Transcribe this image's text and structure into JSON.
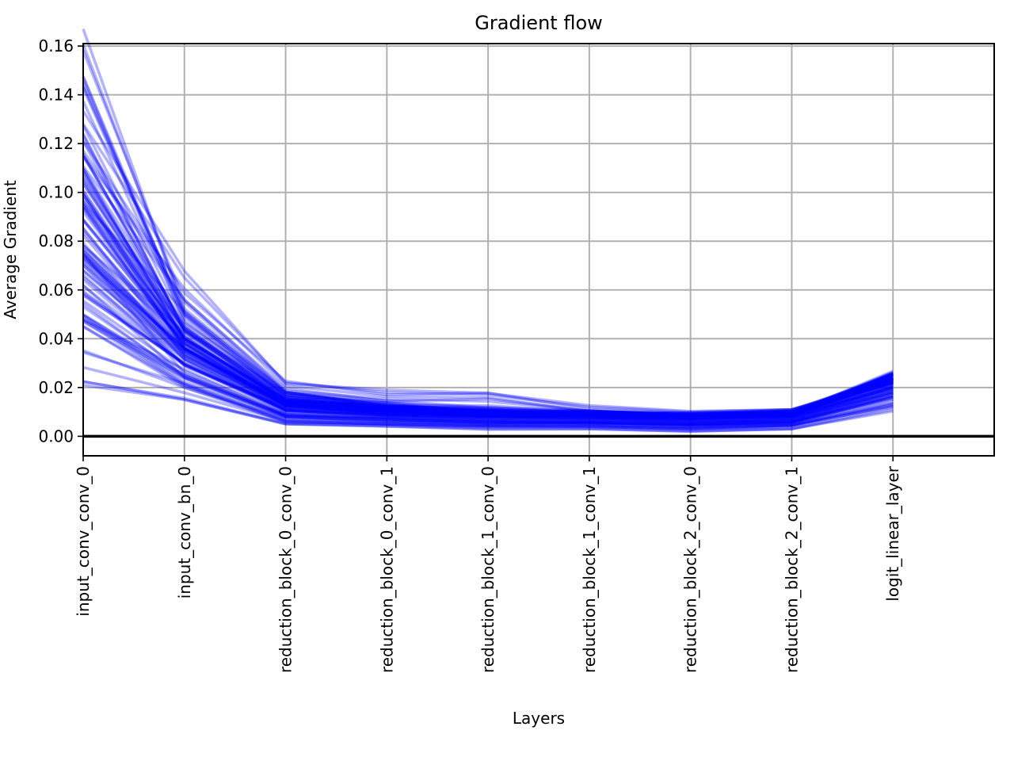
{
  "chart_data": {
    "type": "line",
    "title": "Gradient flow",
    "xlabel": "Layers",
    "ylabel": "Average Gradient",
    "categories": [
      "input_conv_conv_0",
      "input_conv_bn_0",
      "reduction_block_0_conv_0",
      "reduction_block_0_conv_1",
      "reduction_block_1_conv_0",
      "reduction_block_1_conv_1",
      "reduction_block_2_conv_0",
      "reduction_block_2_conv_1",
      "logit_linear_layer"
    ],
    "yticks": [
      "0.00",
      "0.02",
      "0.04",
      "0.06",
      "0.08",
      "0.10",
      "0.12",
      "0.14",
      "0.16"
    ],
    "ylim": [
      -0.008,
      0.161
    ],
    "xlim": [
      0,
      9
    ],
    "grid": true,
    "zero_line": true,
    "series_color": "#0000ff",
    "series_opacity": 0.3,
    "series_count": 100,
    "representative_series": [
      [
        0.158,
        0.055,
        0.018,
        0.012,
        0.01,
        0.009,
        0.008,
        0.009,
        0.025
      ],
      [
        0.145,
        0.05,
        0.017,
        0.013,
        0.01,
        0.009,
        0.009,
        0.01,
        0.024
      ],
      [
        0.128,
        0.065,
        0.022,
        0.018,
        0.017,
        0.012,
        0.01,
        0.011,
        0.022
      ],
      [
        0.115,
        0.045,
        0.015,
        0.012,
        0.01,
        0.01,
        0.009,
        0.009,
        0.026
      ],
      [
        0.105,
        0.04,
        0.015,
        0.011,
        0.01,
        0.009,
        0.009,
        0.01,
        0.024
      ],
      [
        0.095,
        0.038,
        0.014,
        0.012,
        0.011,
        0.01,
        0.009,
        0.01,
        0.025
      ],
      [
        0.085,
        0.036,
        0.013,
        0.011,
        0.01,
        0.009,
        0.008,
        0.009,
        0.023
      ],
      [
        0.075,
        0.035,
        0.013,
        0.01,
        0.009,
        0.009,
        0.008,
        0.009,
        0.024
      ],
      [
        0.068,
        0.032,
        0.012,
        0.01,
        0.009,
        0.008,
        0.008,
        0.009,
        0.022
      ],
      [
        0.058,
        0.03,
        0.011,
        0.009,
        0.008,
        0.008,
        0.007,
        0.008,
        0.02
      ],
      [
        0.048,
        0.025,
        0.009,
        0.007,
        0.006,
        0.006,
        0.005,
        0.006,
        0.018
      ],
      [
        0.045,
        0.02,
        0.006,
        0.005,
        0.004,
        0.004,
        0.003,
        0.004,
        0.013
      ],
      [
        0.021,
        0.015,
        0.005,
        0.004,
        0.003,
        0.003,
        0.002,
        0.003,
        0.011
      ]
    ]
  }
}
